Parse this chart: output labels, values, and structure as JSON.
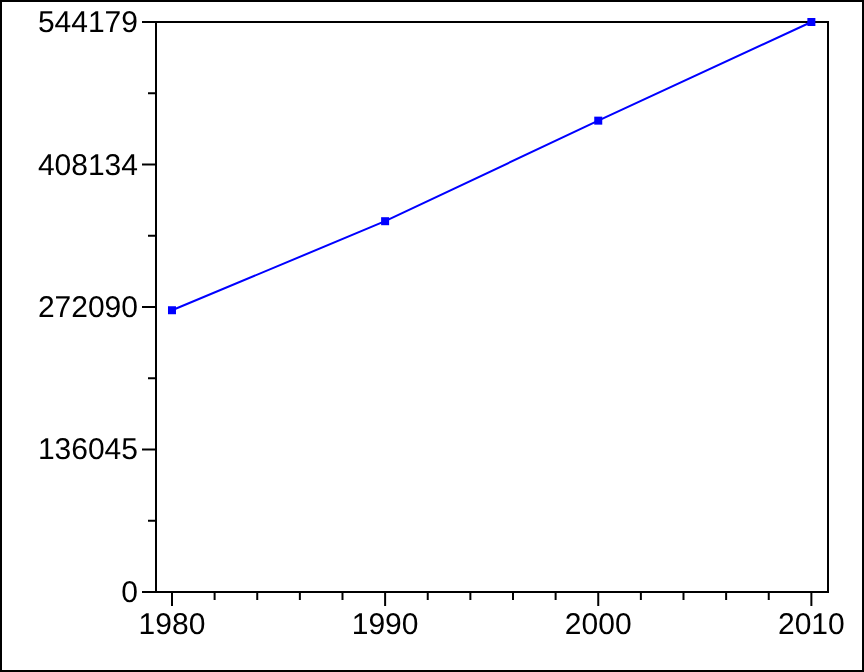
{
  "chart_data": {
    "type": "line",
    "x": [
      1980,
      1990,
      2000,
      2010
    ],
    "series": [
      {
        "color": "#0000ff",
        "values": [
          269000,
          354000,
          450000,
          544179
        ]
      }
    ],
    "marker": "square",
    "line_style": "solid",
    "grid": false,
    "xlim": [
      1979.25,
      2010.78
    ],
    "xticks": [
      1980,
      {
        "value": 1982,
        "label": null
      },
      {
        "value": 1984,
        "label": null
      },
      {
        "value": 1986,
        "label": null
      },
      {
        "value": 1988,
        "label": null
      },
      1990,
      {
        "value": 1992,
        "label": null
      },
      {
        "value": 1994,
        "label": null
      },
      {
        "value": 1996,
        "label": null
      },
      {
        "value": 1998,
        "label": null
      },
      2000,
      {
        "value": 2002,
        "label": null
      },
      {
        "value": 2004,
        "label": null
      },
      {
        "value": 2006,
        "label": null
      },
      {
        "value": 2008,
        "label": null
      },
      2010
    ],
    "ylim": [
      0,
      544179
    ],
    "yticks": [
      0,
      {
        "value": 68022,
        "label": null
      },
      136045,
      {
        "value": 204067,
        "label": null
      },
      272090,
      {
        "value": 340112,
        "label": null
      },
      408134,
      {
        "value": 476157,
        "label": null
      },
      544179
    ]
  }
}
